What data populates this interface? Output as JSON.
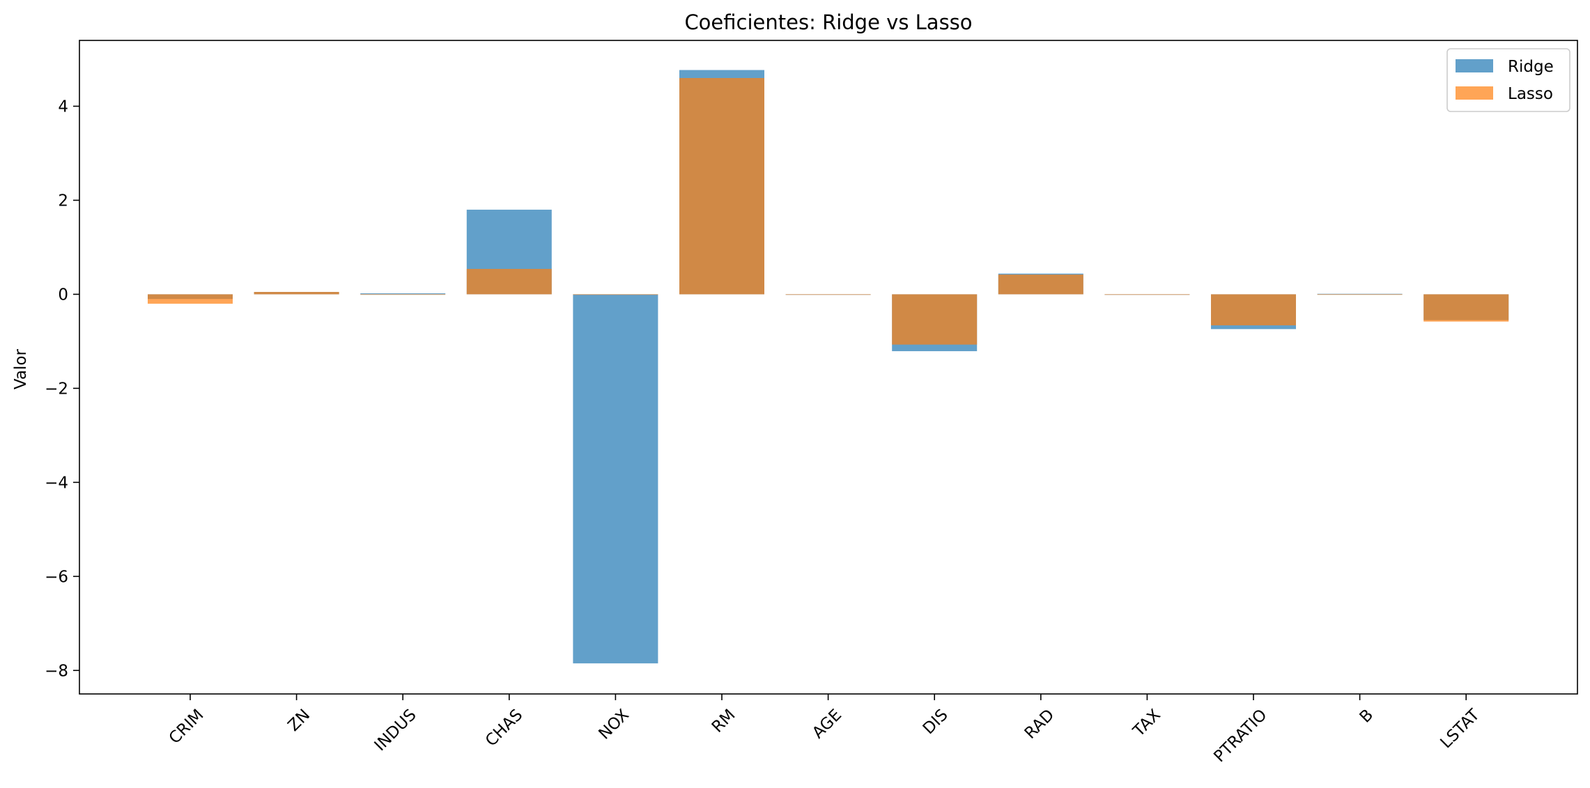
{
  "chart_data": {
    "type": "bar",
    "title": "Coeficientes: Ridge vs Lasso",
    "xlabel": "",
    "ylabel": "Valor",
    "categories": [
      "CRIM",
      "ZN",
      "INDUS",
      "CHAS",
      "NOX",
      "RM",
      "AGE",
      "DIS",
      "RAD",
      "TAX",
      "PTRATIO",
      "B",
      "LSTAT"
    ],
    "series": [
      {
        "name": "Ridge",
        "color": "#1f77b4",
        "opacity": 0.7,
        "values": [
          -0.1,
          0.05,
          0.02,
          1.8,
          -7.85,
          4.77,
          -0.01,
          -1.21,
          0.44,
          -0.01,
          -0.74,
          0.01,
          -0.55
        ]
      },
      {
        "name": "Lasso",
        "color": "#ff7f0e",
        "opacity": 0.7,
        "values": [
          -0.2,
          0.05,
          -0.01,
          0.54,
          0.0,
          4.6,
          -0.01,
          -1.07,
          0.42,
          -0.01,
          -0.66,
          0.0,
          -0.58
        ]
      }
    ],
    "yticks": [
      -8,
      -6,
      -4,
      -2,
      0,
      2,
      4
    ],
    "ytick_labels": [
      "−8",
      "−6",
      "−4",
      "−2",
      "0",
      "2",
      "4"
    ],
    "ylim": [
      -8.5,
      5.4
    ],
    "grid": false,
    "legend_position": "top-right",
    "bars_overlaid": true
  }
}
